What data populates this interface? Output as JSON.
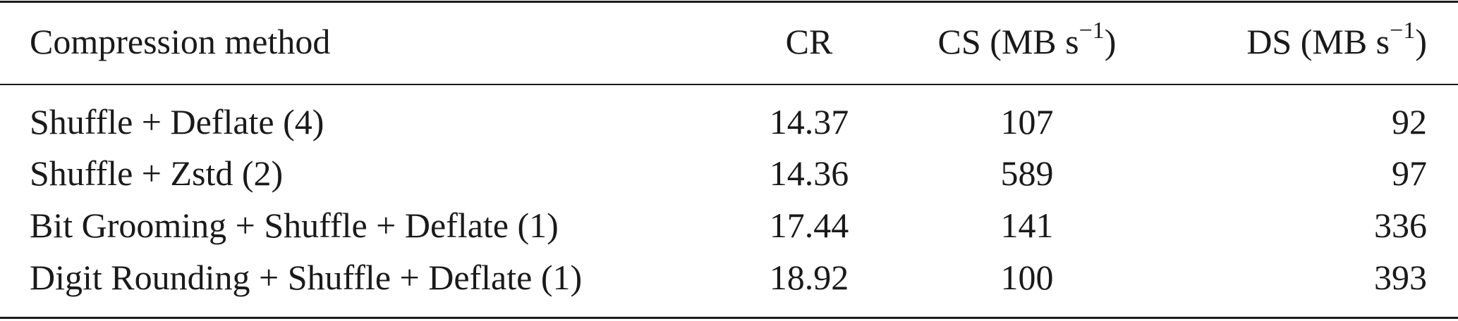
{
  "table": {
    "columns": [
      {
        "label": "Compression method"
      },
      {
        "label": "CR"
      },
      {
        "label": "CS (MB s",
        "sup": "−1",
        "suffix": ")"
      },
      {
        "label": "DS (MB s",
        "sup": "−1",
        "suffix": ")"
      }
    ],
    "rows": [
      [
        "Shuffle + Deflate (4)",
        14.37,
        107,
        92
      ],
      [
        "Shuffle + Zstd (2)",
        14.36,
        589,
        97
      ],
      [
        "Bit Grooming + Shuffle + Deflate (1)",
        17.44,
        141,
        336
      ],
      [
        "Digit Rounding + Shuffle + Deflate (1)",
        18.92,
        100,
        393
      ]
    ]
  }
}
